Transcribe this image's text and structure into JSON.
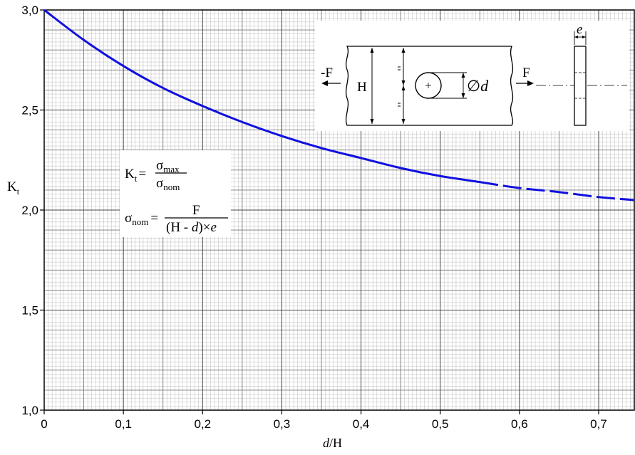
{
  "chart_data": {
    "type": "line",
    "xlabel": {
      "italic": "d",
      "rest": "/H"
    },
    "ylabel": {
      "main": "K",
      "sub": "t"
    },
    "xlim": [
      0,
      0.745
    ],
    "ylim": [
      1.0,
      3.0
    ],
    "x_ticks": [
      "0",
      "0,1",
      "0,2",
      "0,3",
      "0,4",
      "0,5",
      "0,6",
      "0,7"
    ],
    "y_ticks": [
      "1,0",
      "1,5",
      "2,0",
      "2,5",
      "3,0"
    ],
    "grid": true,
    "series": [
      {
        "color": "#1010e0",
        "x": [
          0,
          0.05,
          0.1,
          0.15,
          0.2,
          0.25,
          0.3,
          0.35,
          0.4,
          0.45,
          0.5,
          0.55
        ],
        "y": [
          3.0,
          2.85,
          2.72,
          2.61,
          2.52,
          2.44,
          2.37,
          2.31,
          2.26,
          2.21,
          2.17,
          2.14
        ],
        "style": "solid"
      },
      {
        "color": "#1010e0",
        "x": [
          0.55,
          0.6,
          0.65,
          0.7,
          0.745
        ],
        "y": [
          2.14,
          2.11,
          2.09,
          2.065,
          2.05
        ],
        "style": "dashed"
      }
    ],
    "formula": {
      "kt_lhs_main": "K",
      "kt_lhs_sub": "t",
      "eq": "=",
      "sigma": "σ",
      "max_sub": "max",
      "nom_sub": "nom",
      "sigma_nom_num": "F",
      "sigma_nom_den_a": "(H - ",
      "sigma_nom_den_d": "d",
      "sigma_nom_den_b": ")×",
      "sigma_nom_den_e": "e"
    },
    "diagram": {
      "force_left": "-F",
      "force_right": "F",
      "height_label": "H",
      "diameter_symbol": "∅",
      "diameter_label": "d",
      "thickness_label": "e"
    }
  }
}
